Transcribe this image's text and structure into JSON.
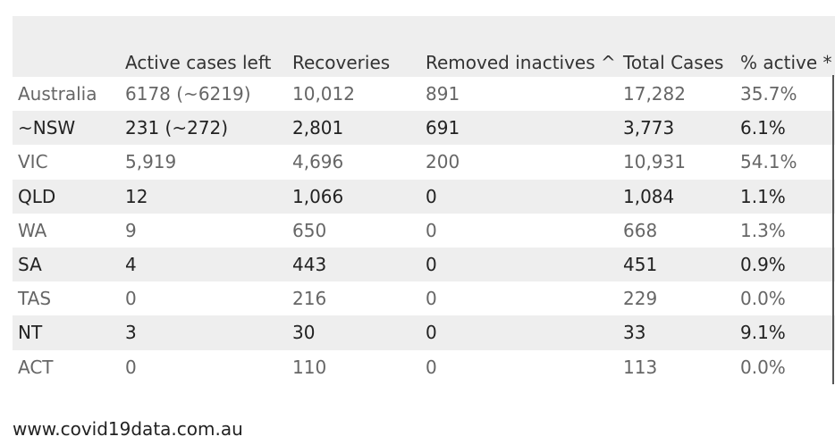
{
  "headers": [
    "",
    "Active cases left",
    "Recoveries",
    "Removed inactives ^",
    "Total Cases",
    "% active *"
  ],
  "rows": [
    [
      "Australia",
      "6178 (~6219)",
      "10,012",
      "891",
      "17,282",
      "35.7%"
    ],
    [
      "~NSW",
      "231 (~272)",
      "2,801",
      "691",
      "3,773",
      "6.1%"
    ],
    [
      "VIC",
      "5,919",
      "4,696",
      "200",
      "10,931",
      "54.1%"
    ],
    [
      "QLD",
      "12",
      "1,066",
      "0",
      "1,084",
      "1.1%"
    ],
    [
      "WA",
      "9",
      "650",
      "0",
      "668",
      "1.3%"
    ],
    [
      "SA",
      "4",
      "443",
      "0",
      "451",
      "0.9%"
    ],
    [
      "TAS",
      "0",
      "216",
      "0",
      "229",
      "0.0%"
    ],
    [
      "NT",
      "3",
      "30",
      "0",
      "33",
      "9.1%"
    ],
    [
      "ACT",
      "0",
      "110",
      "0",
      "113",
      "0.0%"
    ]
  ],
  "footer": "www.covid19data.com.au"
}
